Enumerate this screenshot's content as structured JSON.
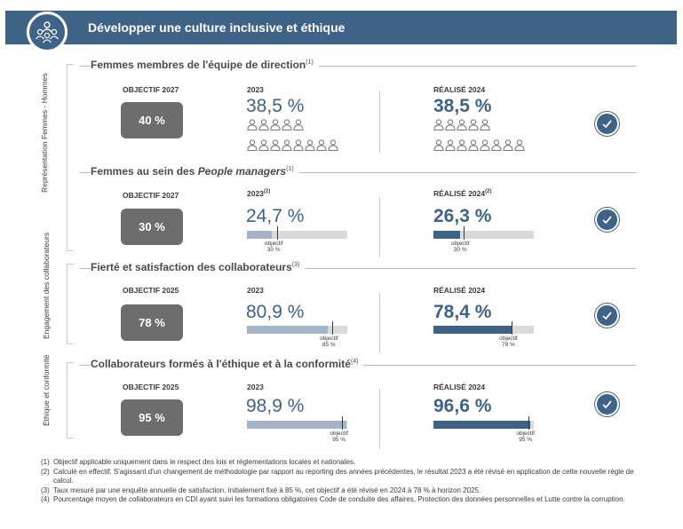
{
  "header": {
    "title": "Développer une culture inclusive et éthique",
    "icon": "people-group-icon"
  },
  "groups": [
    {
      "label": "Représentation Femmes - Hommes"
    },
    {
      "label": "Engagement des collaborateurs"
    },
    {
      "label": "Éthique et conformité"
    }
  ],
  "sections": [
    {
      "title": "Femmes membres de l'équipe de direction",
      "title_sup": "(1)",
      "obj_label": "OBJECTIF 2027",
      "obj_value": "40 %",
      "y2023_label": "2023",
      "y2023_sup": "",
      "y2023_value": "38,5 %",
      "y2024_label": "RÉALISÉ 2024",
      "y2024_sup": "",
      "y2024_value": "38,5 %",
      "people_2023": {
        "highlighted": 5,
        "total": 13
      },
      "people_2024": {
        "highlighted": 5,
        "total": 13
      },
      "status": "check-icon"
    },
    {
      "title": "Femmes au sein des People managers",
      "title_plain": "Femmes au sein des ",
      "title_italic": "People managers",
      "title_sup": "(1)",
      "obj_label": "OBJECTIF 2027",
      "obj_value": "30 %",
      "y2023_label": "2023",
      "y2023_sup": "(2)",
      "y2023_value": "24,7 %",
      "y2024_label": "RÉALISÉ 2024",
      "y2024_sup": "(2)",
      "y2024_value": "26,3 %",
      "bar_2023": {
        "value": 24.7,
        "target": 30,
        "note": "objectif",
        "note2": "30 %"
      },
      "bar_2024": {
        "value": 26.3,
        "target": 30,
        "note": "objectif",
        "note2": "30 %"
      },
      "status": "check-icon"
    },
    {
      "title": "Fierté et satisfaction des collaborateurs",
      "title_sup": "(3)",
      "obj_label": "OBJECTIF 2025",
      "obj_value": "78 %",
      "y2023_label": "2023",
      "y2023_sup": "",
      "y2023_value": "80,9 %",
      "y2024_label": "RÉALISÉ 2024",
      "y2024_sup": "",
      "y2024_value": "78,4 %",
      "bar_2023": {
        "value": 80.9,
        "target": 85,
        "note": "objectif",
        "note2": "85 %"
      },
      "bar_2024": {
        "value": 78.4,
        "target": 78,
        "note": "objectif",
        "note2": "78 %"
      },
      "status": "check-icon"
    },
    {
      "title": "Collaborateurs formés à l'éthique et à la conformité",
      "title_sup": "(4)",
      "obj_label": "OBJECTIF 2025",
      "obj_value": "95 %",
      "y2023_label": "2023",
      "y2023_sup": "",
      "y2023_value": "98,9 %",
      "y2024_label": "RÉALISÉ 2024",
      "y2024_sup": "",
      "y2024_value": "96,6 %",
      "bar_2023": {
        "value": 98.9,
        "target": 95,
        "note": "objectif",
        "note2": "95 %"
      },
      "bar_2024": {
        "value": 96.6,
        "target": 95,
        "note": "objectif",
        "note2": "95 %"
      },
      "status": "check-icon"
    }
  ],
  "footnotes": [
    {
      "num": "(1)",
      "text": "Objectif applicable uniquement dans le respect des lois et réglementations locales et nationales."
    },
    {
      "num": "(2)",
      "text": "Calculé en effectif. S'agissant d'un changement de méthodologie par rapport au reporting des années précédentes, le résultat 2023 a été révisé en application de cette nouvelle règle de calcul."
    },
    {
      "num": "(3)",
      "text": "Taux mesuré par une enquête annuelle de satisfaction. Initialement fixé à 85 %, cet objectif a été révisé en 2024 à 78 % à horizon 2025."
    },
    {
      "num": "(4)",
      "text": "Pourcentage moyen de collaborateurs en CDI ayant suivi les formations obligatoires Code de conduite des affaires, Protection des données personnelles et Lutte contre la corruption."
    }
  ],
  "colors": {
    "accent": "#3f6386",
    "light_bar": "#a4b4c6",
    "track": "#dadada",
    "objective_box": "#6d6d6d"
  }
}
